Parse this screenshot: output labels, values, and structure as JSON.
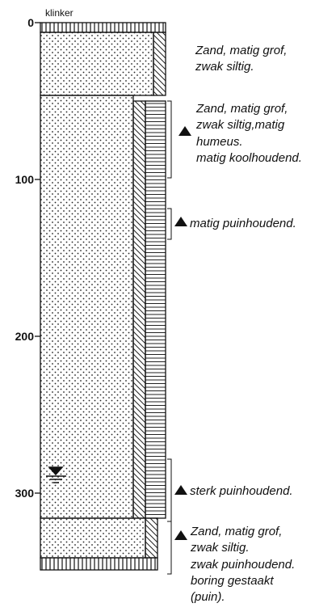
{
  "axis": {
    "top_label": "klinker",
    "ticks": [
      0,
      100,
      200,
      300
    ]
  },
  "annotations": [
    {
      "lines": [
        "Zand, matig grof,",
        "zwak siltig."
      ]
    },
    {
      "lines": [
        "Zand, matig grof,",
        "zwak siltig,matig",
        "humeus.",
        "matig koolhoudend."
      ]
    },
    {
      "lines": [
        "matig puinhoudend."
      ]
    },
    {
      "lines": [
        "sterk puinhoudend."
      ]
    },
    {
      "lines": [
        "Zand, matig grof,",
        "zwak siltig.",
        "zwak puinhoudend.",
        "boring gestaakt",
        "(puin)."
      ]
    }
  ]
}
